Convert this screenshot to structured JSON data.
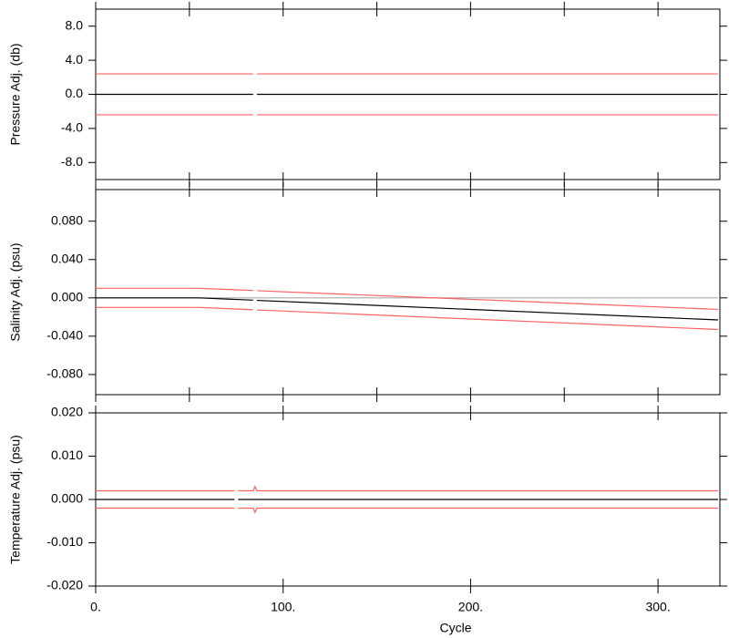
{
  "chart_data": [
    {
      "type": "line",
      "y_label": "Pressure Adj. (db)",
      "xlim": [
        0,
        333
      ],
      "xticks": [
        0,
        50,
        100,
        150,
        200,
        250,
        300
      ],
      "ylim": [
        -10,
        10
      ],
      "yticks": [
        {
          "value": 8,
          "label": "8.0"
        },
        {
          "value": 4,
          "label": "4.0"
        },
        {
          "value": 0,
          "label": "0.0"
        },
        {
          "value": -4,
          "label": "-4.0"
        },
        {
          "value": -8,
          "label": "-8.0"
        }
      ],
      "series": [
        {
          "color": "#ff6060",
          "x": [
            0,
            84,
            85,
            86,
            332
          ],
          "values": [
            2.4,
            2.4,
            null,
            2.4,
            2.4
          ]
        },
        {
          "color": "#ff6060",
          "x": [
            0,
            84,
            85,
            86,
            332
          ],
          "values": [
            -2.4,
            -2.4,
            null,
            -2.4,
            -2.4
          ]
        },
        {
          "color": "#000000",
          "x": [
            0,
            84,
            85,
            86,
            332
          ],
          "values": [
            0,
            0,
            null,
            0,
            0
          ]
        }
      ]
    },
    {
      "type": "line",
      "y_label": "Salinity Adj. (psu)",
      "xlim": [
        0,
        333
      ],
      "xticks": [
        0,
        50,
        100,
        150,
        200,
        250,
        300
      ],
      "ylim": [
        -0.101,
        0.113
      ],
      "yticks": [
        {
          "value": 0.08,
          "label": "0.080"
        },
        {
          "value": 0.04,
          "label": "0.040"
        },
        {
          "value": 0,
          "label": "0.000"
        },
        {
          "value": -0.04,
          "label": "-0.040"
        },
        {
          "value": -0.08,
          "label": "-0.080"
        }
      ],
      "series": [
        {
          "color": "#aaaaaa",
          "x": [
            0,
            332
          ],
          "values": [
            0,
            0
          ]
        },
        {
          "color": "#ff6060",
          "x": [
            0,
            55,
            84,
            85,
            86,
            332
          ],
          "values": [
            0.01,
            0.01,
            0.0077,
            null,
            0.0075,
            -0.012
          ]
        },
        {
          "color": "#ff6060",
          "x": [
            0,
            55,
            84,
            85,
            86,
            332
          ],
          "values": [
            -0.01,
            -0.01,
            -0.0124,
            null,
            -0.0126,
            -0.033
          ]
        },
        {
          "color": "#000000",
          "x": [
            0,
            55,
            84,
            85,
            86,
            332
          ],
          "values": [
            0,
            0,
            -0.0024,
            null,
            -0.0026,
            -0.023
          ]
        }
      ]
    },
    {
      "type": "line",
      "y_label": "Temperature Adj. (psu)",
      "x_label": "Cycle",
      "xlim": [
        0,
        333
      ],
      "xticks": [
        {
          "value": 0,
          "label": "0."
        },
        {
          "value": 100,
          "label": "100."
        },
        {
          "value": 200,
          "label": "200."
        },
        {
          "value": 300,
          "label": "300."
        }
      ],
      "ylim": [
        -0.02,
        0.02
      ],
      "yticks": [
        {
          "value": 0.02,
          "label": "0.020"
        },
        {
          "value": 0.01,
          "label": "0.010"
        },
        {
          "value": 0,
          "label": "0.000"
        },
        {
          "value": -0.01,
          "label": "-0.010"
        },
        {
          "value": -0.02,
          "label": "-0.020"
        }
      ],
      "series": [
        {
          "color": "#ff6060",
          "x": [
            0,
            74,
            75,
            76,
            84,
            85,
            86,
            332
          ],
          "values": [
            0.002,
            0.002,
            null,
            0.002,
            0.002,
            0.003,
            0.002,
            0.002
          ]
        },
        {
          "color": "#ff6060",
          "x": [
            0,
            74,
            75,
            76,
            84,
            85,
            86,
            332
          ],
          "values": [
            -0.002,
            -0.002,
            null,
            -0.002,
            -0.002,
            -0.003,
            -0.002,
            -0.002
          ]
        },
        {
          "color": "#000000",
          "x": [
            0,
            74,
            75,
            76,
            332
          ],
          "values": [
            0,
            0,
            null,
            0,
            0
          ]
        }
      ]
    }
  ]
}
